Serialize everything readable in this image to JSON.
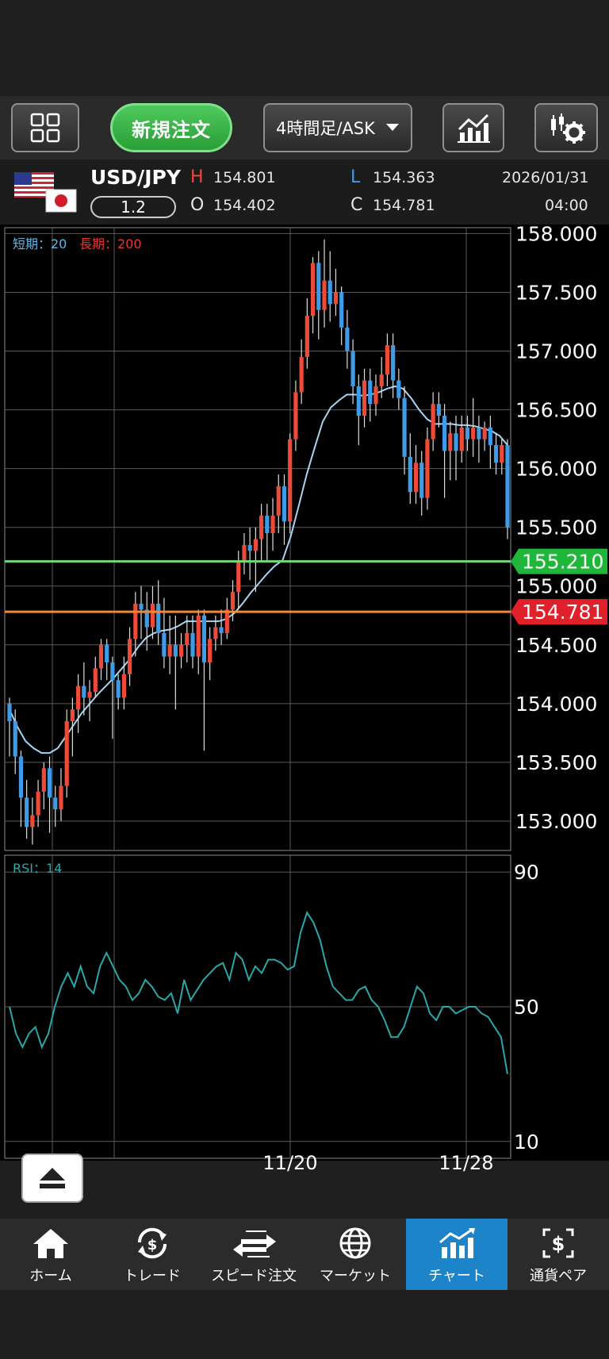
{
  "toolbar": {
    "new_order_label": "新規注文",
    "timeframe_label": "4時間足/ASK"
  },
  "quote": {
    "pair": "USD/JPY",
    "spread": "1.2",
    "high_label": "H",
    "high": "154.801",
    "open_label": "O",
    "open": "154.402",
    "low_label": "L",
    "low": "154.363",
    "close_label": "C",
    "close": "154.781",
    "date": "2026/01/31",
    "time": "04:00"
  },
  "chart": {
    "legend_short": "短期：20",
    "legend_long": "長期：200",
    "rsi_label": "RSI：14",
    "current_bid_label": "155.210",
    "current_ask_label": "154.781",
    "colors": {
      "up": "#ee4a3a",
      "down": "#3d9be8",
      "ma_short": "#a8d4f0",
      "rsi": "#2aa8a8",
      "bid_line": "#6fd87a",
      "ask_line": "#f0883a"
    }
  },
  "chart_data": {
    "type": "candlestick",
    "price_axis": [
      "158.000",
      "157.500",
      "157.000",
      "156.500",
      "156.000",
      "155.500",
      "155.000",
      "154.500",
      "154.000",
      "153.500",
      "153.000"
    ],
    "ylim": [
      152.75,
      158.05
    ],
    "rsi_axis": [
      "90",
      "50",
      "10"
    ],
    "rsi_ylim": [
      5,
      95
    ],
    "x_labels": [
      "11/20",
      "11/28"
    ],
    "candles": [
      [
        154.0,
        153.85,
        154.05,
        153.55
      ],
      [
        153.85,
        153.55,
        153.95,
        153.4
      ],
      [
        153.55,
        153.2,
        153.6,
        152.95
      ],
      [
        153.2,
        152.95,
        153.35,
        152.85
      ],
      [
        152.95,
        153.05,
        153.2,
        152.8
      ],
      [
        153.05,
        153.25,
        153.35,
        152.95
      ],
      [
        153.25,
        153.45,
        153.5,
        153.1
      ],
      [
        153.45,
        153.2,
        153.55,
        152.9
      ],
      [
        153.2,
        153.1,
        153.3,
        152.95
      ],
      [
        153.1,
        153.3,
        153.45,
        153.0
      ],
      [
        153.3,
        153.85,
        153.95,
        153.2
      ],
      [
        153.85,
        153.95,
        154.05,
        153.55
      ],
      [
        153.95,
        154.15,
        154.25,
        153.75
      ],
      [
        154.15,
        154.05,
        154.35,
        153.9
      ],
      [
        154.05,
        154.1,
        154.2,
        153.85
      ],
      [
        154.1,
        154.3,
        154.4,
        154.05
      ],
      [
        154.3,
        154.5,
        154.55,
        154.2
      ],
      [
        154.5,
        154.35,
        154.55,
        154.2
      ],
      [
        154.35,
        154.2,
        154.4,
        153.7
      ],
      [
        154.2,
        154.05,
        154.25,
        153.95
      ],
      [
        154.05,
        154.25,
        154.4,
        153.95
      ],
      [
        154.25,
        154.55,
        154.65,
        154.15
      ],
      [
        154.55,
        154.85,
        154.95,
        154.4
      ],
      [
        154.85,
        154.8,
        155.0,
        154.55
      ],
      [
        154.8,
        154.65,
        154.95,
        154.45
      ],
      [
        154.65,
        154.85,
        155.0,
        154.55
      ],
      [
        154.85,
        154.6,
        155.05,
        154.5
      ],
      [
        154.6,
        154.4,
        154.9,
        154.3
      ],
      [
        154.4,
        154.5,
        154.75,
        154.25
      ],
      [
        154.5,
        154.4,
        154.75,
        153.95
      ],
      [
        154.4,
        154.5,
        154.6,
        154.3
      ],
      [
        154.5,
        154.6,
        154.75,
        154.35
      ],
      [
        154.6,
        154.4,
        154.75,
        154.3
      ],
      [
        154.4,
        154.75,
        154.8,
        154.25
      ],
      [
        154.75,
        154.35,
        154.8,
        153.6
      ],
      [
        154.35,
        154.55,
        154.65,
        154.2
      ],
      [
        154.55,
        154.65,
        154.75,
        154.45
      ],
      [
        154.65,
        154.6,
        154.8,
        154.5
      ],
      [
        154.6,
        154.8,
        154.9,
        154.55
      ],
      [
        154.8,
        154.95,
        155.05,
        154.7
      ],
      [
        154.95,
        155.2,
        155.3,
        154.8
      ],
      [
        155.2,
        155.35,
        155.45,
        155.1
      ],
      [
        155.35,
        155.3,
        155.5,
        155.05
      ],
      [
        155.3,
        155.4,
        155.5,
        154.95
      ],
      [
        155.4,
        155.6,
        155.7,
        155.2
      ],
      [
        155.6,
        155.45,
        155.7,
        155.2
      ],
      [
        155.45,
        155.6,
        155.75,
        155.3
      ],
      [
        155.6,
        155.85,
        155.95,
        155.45
      ],
      [
        155.85,
        155.55,
        155.95,
        155.35
      ],
      [
        155.55,
        156.25,
        156.3,
        155.45
      ],
      [
        156.25,
        156.65,
        156.75,
        156.15
      ],
      [
        156.65,
        156.95,
        157.1,
        156.55
      ],
      [
        156.95,
        157.3,
        157.45,
        156.85
      ],
      [
        157.3,
        157.75,
        157.8,
        157.15
      ],
      [
        157.75,
        157.35,
        157.85,
        157.1
      ],
      [
        157.35,
        157.6,
        157.95,
        157.2
      ],
      [
        157.6,
        157.4,
        157.85,
        157.25
      ],
      [
        157.4,
        157.5,
        157.7,
        157.3
      ],
      [
        157.5,
        157.2,
        157.55,
        157.05
      ],
      [
        157.2,
        157.0,
        157.35,
        156.85
      ],
      [
        157.0,
        156.7,
        157.1,
        156.55
      ],
      [
        156.7,
        156.45,
        156.8,
        156.2
      ],
      [
        156.45,
        156.75,
        156.85,
        156.35
      ],
      [
        156.75,
        156.55,
        156.85,
        156.4
      ],
      [
        156.55,
        156.7,
        156.8,
        156.45
      ],
      [
        156.7,
        156.8,
        156.95,
        156.6
      ],
      [
        156.8,
        157.05,
        157.15,
        156.7
      ],
      [
        157.05,
        156.75,
        157.15,
        156.6
      ],
      [
        156.75,
        156.6,
        156.85,
        156.5
      ],
      [
        156.6,
        156.1,
        156.7,
        155.95
      ],
      [
        156.1,
        155.8,
        156.3,
        155.7
      ],
      [
        155.8,
        156.05,
        156.2,
        155.7
      ],
      [
        156.05,
        155.75,
        156.15,
        155.6
      ],
      [
        155.75,
        156.25,
        156.35,
        155.65
      ],
      [
        156.25,
        156.55,
        156.65,
        156.15
      ],
      [
        156.55,
        156.45,
        156.65,
        156.35
      ],
      [
        156.45,
        156.15,
        156.55,
        155.75
      ],
      [
        156.15,
        156.3,
        156.4,
        155.9
      ],
      [
        156.3,
        156.15,
        156.45,
        155.9
      ],
      [
        156.15,
        156.35,
        156.45,
        156.05
      ],
      [
        156.35,
        156.25,
        156.45,
        156.15
      ],
      [
        156.25,
        156.35,
        156.6,
        156.1
      ],
      [
        156.35,
        156.25,
        156.45,
        156.05
      ],
      [
        156.25,
        156.35,
        156.4,
        156.15
      ],
      [
        156.35,
        156.2,
        156.45,
        156.0
      ],
      [
        156.2,
        156.05,
        156.3,
        155.95
      ],
      [
        156.05,
        156.2,
        156.25,
        155.95
      ],
      [
        156.2,
        155.5,
        156.25,
        155.4
      ]
    ],
    "ma_short": [
      153.95,
      153.8,
      153.68,
      153.62,
      153.58,
      153.58,
      153.62,
      153.72,
      153.82,
      153.92,
      154.0,
      154.08,
      154.15,
      154.22,
      154.3,
      154.38,
      154.48,
      154.56,
      154.6,
      154.62,
      154.63,
      154.66,
      154.7,
      154.7,
      154.7,
      154.7,
      154.7,
      154.72,
      154.77,
      154.85,
      154.94,
      155.02,
      155.1,
      155.17,
      155.22,
      155.42,
      155.68,
      155.95,
      156.18,
      156.4,
      156.52,
      156.58,
      156.63,
      156.63,
      156.62,
      156.63,
      156.65,
      156.68,
      156.7,
      156.68,
      156.6,
      156.5,
      156.42,
      156.38,
      156.38,
      156.38,
      156.37,
      156.37,
      156.36,
      156.34,
      156.32,
      156.28,
      156.2
    ],
    "rsi": [
      50,
      42,
      38,
      42,
      44,
      38,
      42,
      50,
      56,
      60,
      56,
      62,
      56,
      54,
      62,
      66,
      62,
      58,
      56,
      52,
      54,
      58,
      56,
      53,
      52,
      54,
      48,
      58,
      52,
      55,
      58,
      60,
      62,
      63,
      58,
      66,
      64,
      58,
      62,
      60,
      64,
      64,
      63,
      61,
      62,
      72,
      78,
      75,
      70,
      62,
      56,
      54,
      52,
      52,
      55,
      56,
      52,
      50,
      46,
      41,
      41,
      44,
      50,
      56,
      54,
      48,
      46,
      50,
      50,
      48,
      49,
      50,
      50,
      48,
      47,
      44,
      41,
      30
    ],
    "bid_price": 155.21,
    "ask_price": 154.781
  },
  "nav": {
    "items": [
      {
        "label": "ホーム"
      },
      {
        "label": "トレード"
      },
      {
        "label": "スピード注文"
      },
      {
        "label": "マーケット"
      },
      {
        "label": "チャート"
      },
      {
        "label": "通貨ペア"
      }
    ]
  }
}
